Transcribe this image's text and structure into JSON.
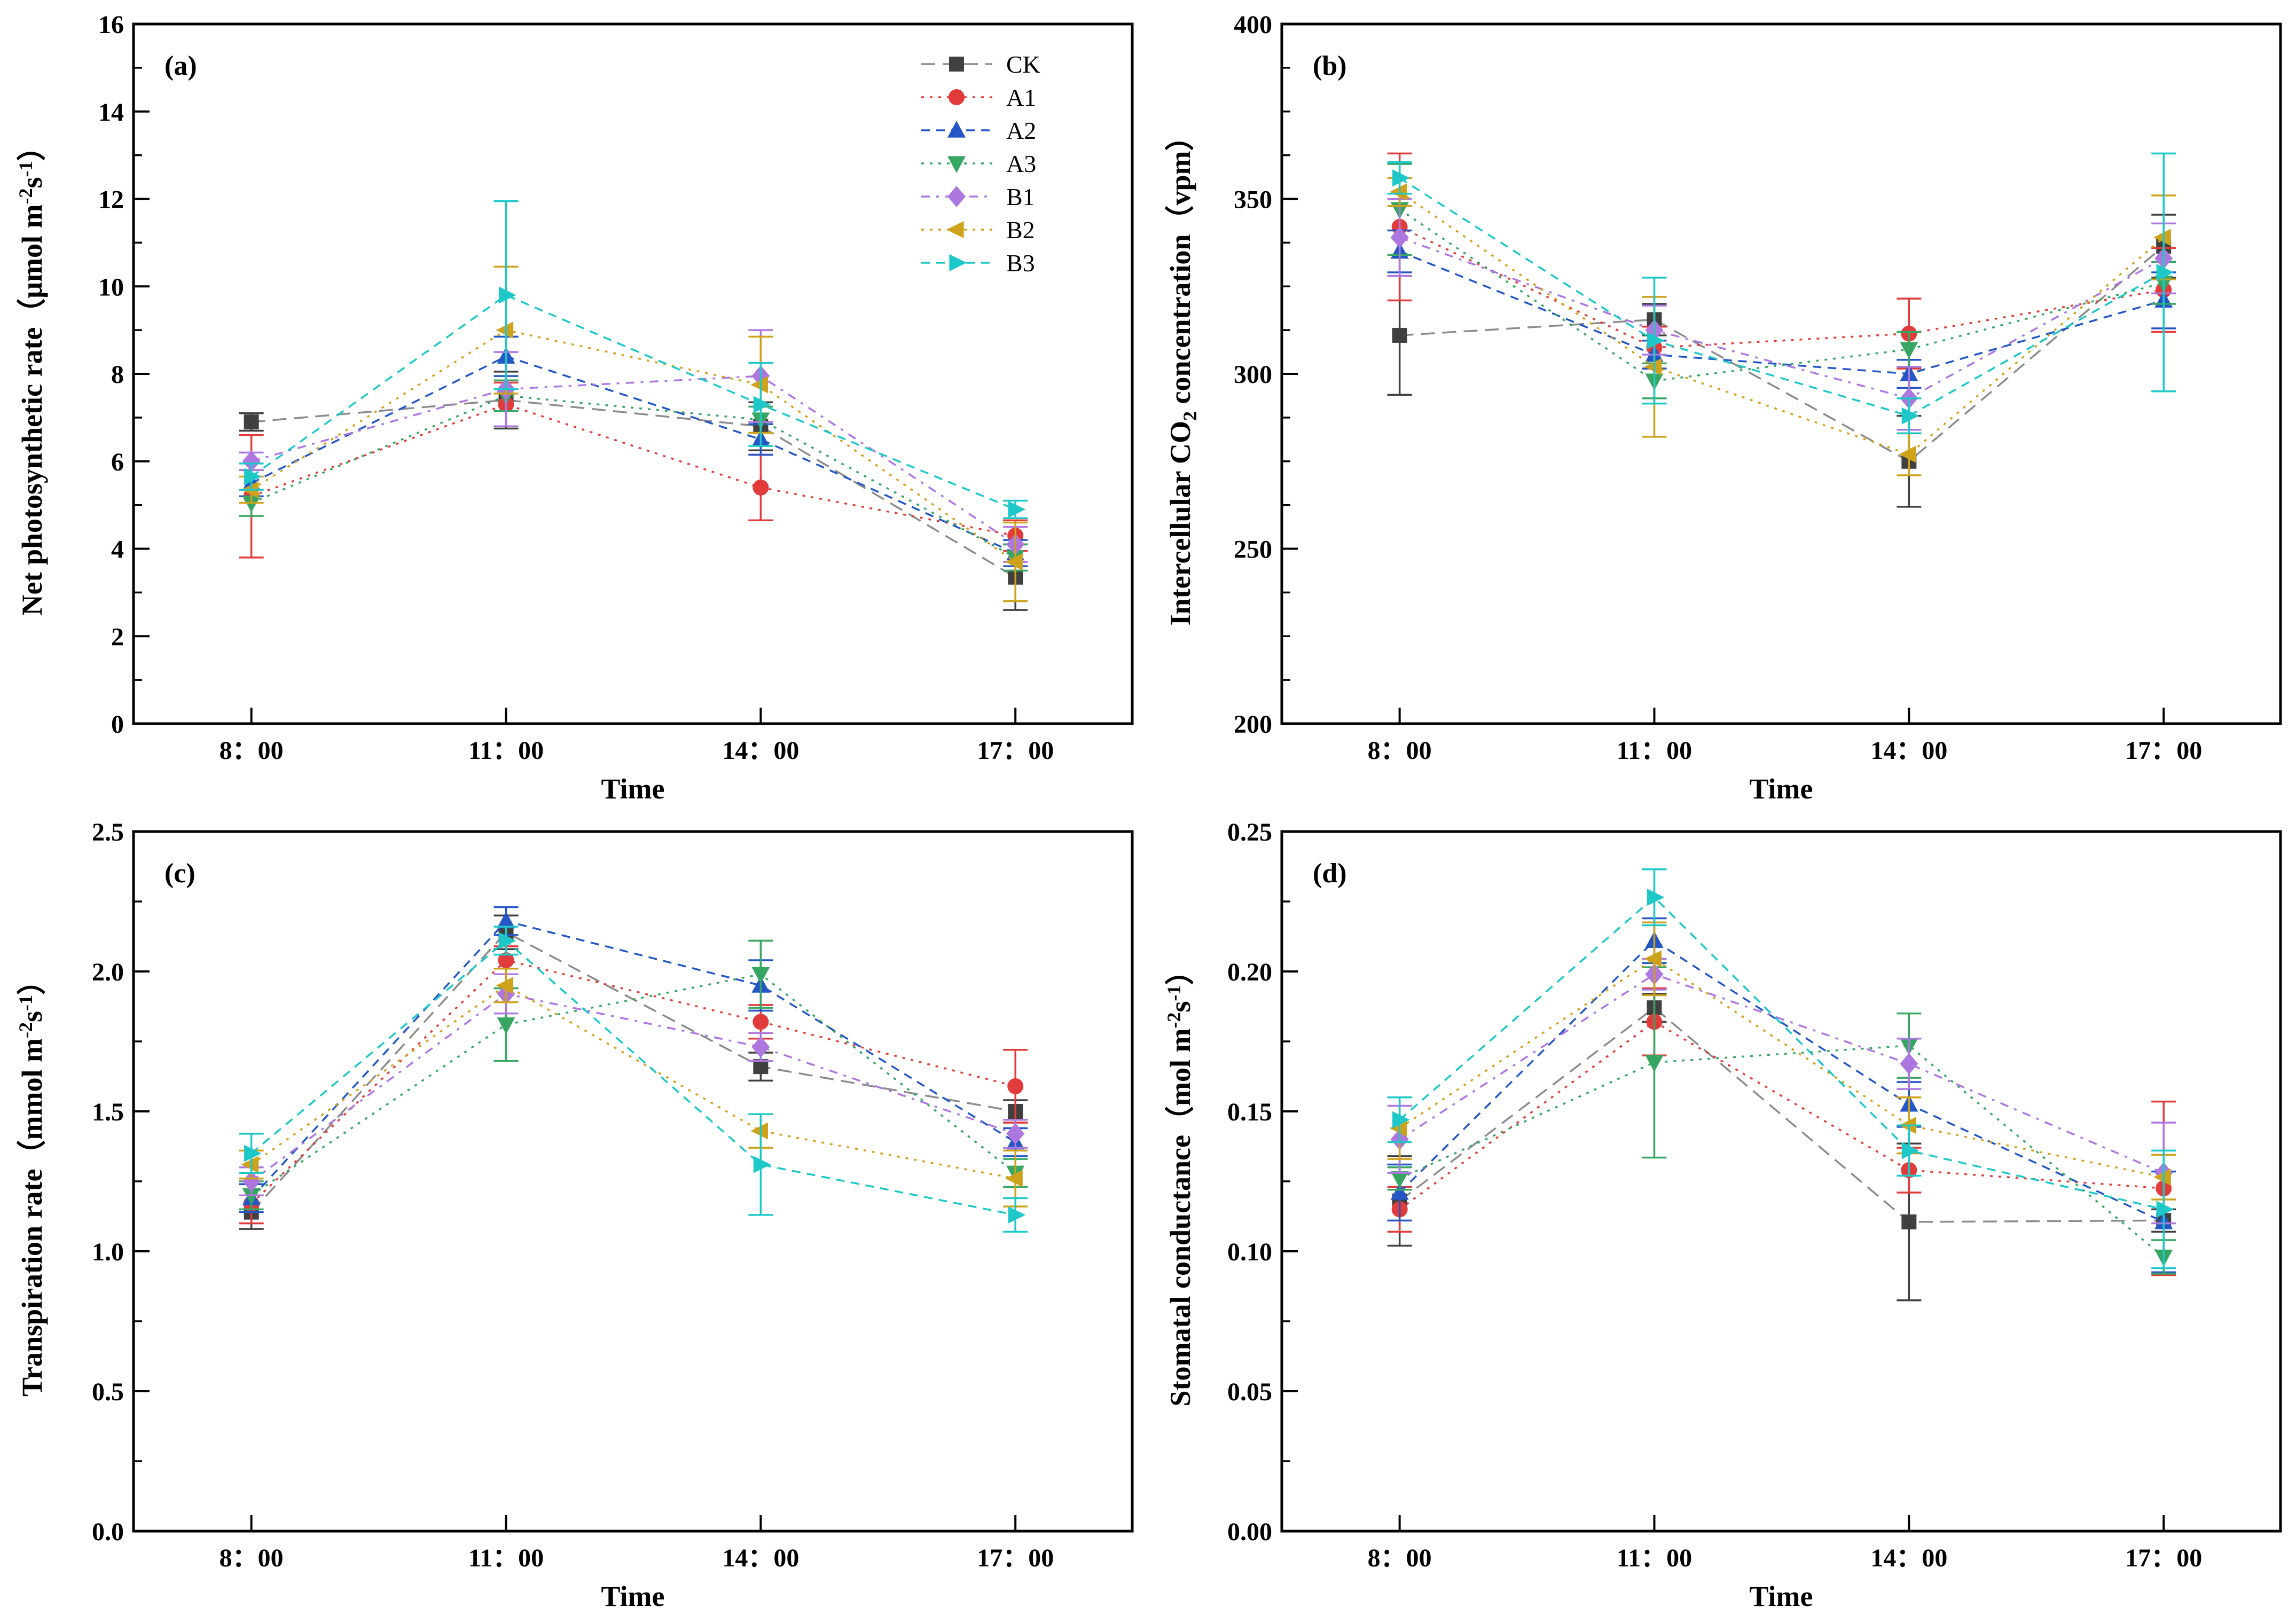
{
  "figure": {
    "background": "#ffffff"
  },
  "series_styles": [
    {
      "name": "CK",
      "color": "#404040",
      "line_color": "#8c8c8c",
      "dash": "26 14",
      "marker": "square"
    },
    {
      "name": "A1",
      "color": "#e23b3b",
      "line_color": "#e23b3b",
      "dash": "5 11",
      "marker": "circle"
    },
    {
      "name": "A2",
      "color": "#2457c5",
      "line_color": "#2457c5",
      "dash": "16 12",
      "marker": "triangle-up"
    },
    {
      "name": "A3",
      "color": "#37a662",
      "line_color": "#37a662",
      "dash": "5 11",
      "marker": "triangle-down"
    },
    {
      "name": "B1",
      "color": "#ae77e0",
      "line_color": "#ae77e0",
      "dash": "16 12 5 12",
      "marker": "diamond"
    },
    {
      "name": "B2",
      "color": "#cfa21b",
      "line_color": "#cfa21b",
      "dash": "5 11",
      "marker": "triangle-left"
    },
    {
      "name": "B3",
      "color": "#1ec8c8",
      "line_color": "#1ec8c8",
      "dash": "16 12",
      "marker": "triangle-right"
    }
  ],
  "chart_data": [
    {
      "type": "line",
      "panel_label": "(a)",
      "y_title_parts": [
        {
          "text": "Net photosynthetic rate（μmol m"
        },
        {
          "text": "-2",
          "script": "sup"
        },
        {
          "text": "s"
        },
        {
          "text": "-1",
          "script": "sup"
        },
        {
          "text": "）"
        }
      ],
      "x_title": "Time",
      "categories": [
        "8：00",
        "11：00",
        "14：00",
        "17：00"
      ],
      "ylim": [
        0,
        16
      ],
      "y_major": 2,
      "y_minor_divs": 2,
      "tick_decimals": 0,
      "legend": true,
      "series": [
        {
          "name": "CK",
          "values": [
            6.9,
            7.4,
            6.8,
            3.35
          ],
          "errors": [
            0.2,
            0.65,
            0.55,
            0.75
          ]
        },
        {
          "name": "A1",
          "values": [
            5.2,
            7.3,
            5.4,
            4.3
          ],
          "errors": [
            1.4,
            0.5,
            0.75,
            0.35
          ]
        },
        {
          "name": "A2",
          "values": [
            5.5,
            8.4,
            6.5,
            3.9
          ],
          "errors": [
            0.3,
            0.45,
            0.35,
            0.3
          ]
        },
        {
          "name": "A3",
          "values": [
            5.05,
            7.5,
            6.95,
            3.8
          ],
          "errors": [
            0.3,
            0.35,
            0.3,
            0.3
          ]
        },
        {
          "name": "B1",
          "values": [
            6.0,
            7.65,
            7.95,
            4.1
          ],
          "errors": [
            0.2,
            0.85,
            1.05,
            0.4
          ]
        },
        {
          "name": "B2",
          "values": [
            5.35,
            9.0,
            7.75,
            3.7
          ],
          "errors": [
            0.3,
            1.45,
            1.1,
            0.9
          ]
        },
        {
          "name": "B3",
          "values": [
            5.65,
            9.8,
            7.3,
            4.9
          ],
          "errors": [
            0.3,
            2.15,
            0.95,
            0.2
          ]
        }
      ]
    },
    {
      "type": "line",
      "panel_label": "(b)",
      "y_title_parts": [
        {
          "text": "Intercellular CO"
        },
        {
          "text": "2",
          "script": "sub"
        },
        {
          "text": " concentration（vpm）"
        }
      ],
      "x_title": "Time",
      "categories": [
        "8：00",
        "11：00",
        "14：00",
        "17：00"
      ],
      "ylim": [
        200,
        400
      ],
      "y_major": 50,
      "y_minor_divs": 4,
      "tick_decimals": 0,
      "legend": false,
      "series": [
        {
          "name": "CK",
          "values": [
            311,
            315.5,
            275,
            336.5
          ],
          "errors": [
            17,
            4.5,
            13,
            9
          ]
        },
        {
          "name": "A1",
          "values": [
            342,
            307.5,
            311.5,
            324
          ],
          "errors": [
            21,
            6,
            10,
            12
          ]
        },
        {
          "name": "A2",
          "values": [
            335,
            305.5,
            300,
            321
          ],
          "errors": [
            6,
            4,
            4,
            8
          ]
        },
        {
          "name": "A3",
          "values": [
            347,
            298,
            307,
            326
          ],
          "errors": [
            13,
            5,
            5,
            6
          ]
        },
        {
          "name": "B1",
          "values": [
            339,
            312.5,
            293,
            333
          ],
          "errors": [
            11,
            7,
            9,
            10
          ]
        },
        {
          "name": "B2",
          "values": [
            352,
            302,
            277,
            339
          ],
          "errors": [
            4,
            20,
            6,
            12
          ]
        },
        {
          "name": "B3",
          "values": [
            356,
            309.5,
            288,
            329
          ],
          "errors": [
            4.5,
            18,
            5,
            34
          ]
        }
      ]
    },
    {
      "type": "line",
      "panel_label": "(c)",
      "y_title_parts": [
        {
          "text": "Transpiration rate（mmol m"
        },
        {
          "text": "-2",
          "script": "sup"
        },
        {
          "text": "s"
        },
        {
          "text": "-1",
          "script": "sup"
        },
        {
          "text": "）"
        }
      ],
      "x_title": "Time",
      "categories": [
        "8：00",
        "11：00",
        "14：00",
        "17：00"
      ],
      "ylim": [
        0,
        2.5
      ],
      "y_major": 0.5,
      "y_minor_divs": 2,
      "tick_decimals": 1,
      "legend": false,
      "series": [
        {
          "name": "CK",
          "values": [
            1.14,
            2.14,
            1.66,
            1.5
          ],
          "errors": [
            0.06,
            0.06,
            0.05,
            0.04
          ]
        },
        {
          "name": "A1",
          "values": [
            1.17,
            2.04,
            1.82,
            1.59
          ],
          "errors": [
            0.07,
            0.05,
            0.06,
            0.13
          ]
        },
        {
          "name": "A2",
          "values": [
            1.19,
            2.18,
            1.95,
            1.39
          ],
          "errors": [
            0.05,
            0.05,
            0.09,
            0.05
          ]
        },
        {
          "name": "A3",
          "values": [
            1.2,
            1.81,
            1.99,
            1.28
          ],
          "errors": [
            0.05,
            0.13,
            0.12,
            0.05
          ]
        },
        {
          "name": "B1",
          "values": [
            1.25,
            1.92,
            1.73,
            1.42
          ],
          "errors": [
            0.05,
            0.07,
            0.05,
            0.05
          ]
        },
        {
          "name": "B2",
          "values": [
            1.31,
            1.95,
            1.43,
            1.26
          ],
          "errors": [
            0.05,
            0.06,
            0.06,
            0.1
          ]
        },
        {
          "name": "B3",
          "values": [
            1.35,
            2.11,
            1.31,
            1.13
          ],
          "errors": [
            0.07,
            0.05,
            0.18,
            0.06
          ]
        }
      ]
    },
    {
      "type": "line",
      "panel_label": "(d)",
      "y_title_parts": [
        {
          "text": "Stomatal conductance（mol m"
        },
        {
          "text": "-2",
          "script": "sup"
        },
        {
          "text": "s"
        },
        {
          "text": "-1",
          "script": "sup"
        },
        {
          "text": "）"
        }
      ],
      "x_title": "Time",
      "categories": [
        "8：00",
        "11：00",
        "14：00",
        "17：00"
      ],
      "ylim": [
        0,
        0.25
      ],
      "y_major": 0.05,
      "y_minor_divs": 2,
      "tick_decimals": 2,
      "legend": false,
      "series": [
        {
          "name": "CK",
          "values": [
            0.118,
            0.187,
            0.1105,
            0.111
          ],
          "errors": [
            0.016,
            0.005,
            0.028,
            0.004
          ]
        },
        {
          "name": "A1",
          "values": [
            0.115,
            0.182,
            0.129,
            0.1225
          ],
          "errors": [
            0.008,
            0.012,
            0.008,
            0.031
          ]
        },
        {
          "name": "A2",
          "values": [
            0.121,
            0.211,
            0.1525,
            0.1105
          ],
          "errors": [
            0.01,
            0.008,
            0.008,
            0.018
          ]
        },
        {
          "name": "A3",
          "values": [
            0.126,
            0.1675,
            0.1735,
            0.098
          ],
          "errors": [
            0.004,
            0.034,
            0.0115,
            0.006
          ]
        },
        {
          "name": "B1",
          "values": [
            0.14,
            0.199,
            0.167,
            0.128
          ],
          "errors": [
            0.012,
            0.0055,
            0.009,
            0.018
          ]
        },
        {
          "name": "B2",
          "values": [
            0.144,
            0.2045,
            0.145,
            0.1265
          ],
          "errors": [
            0.011,
            0.013,
            0.01,
            0.008
          ]
        },
        {
          "name": "B3",
          "values": [
            0.147,
            0.2265,
            0.136,
            0.115
          ],
          "errors": [
            0.008,
            0.01,
            0.009,
            0.021
          ]
        }
      ]
    }
  ]
}
